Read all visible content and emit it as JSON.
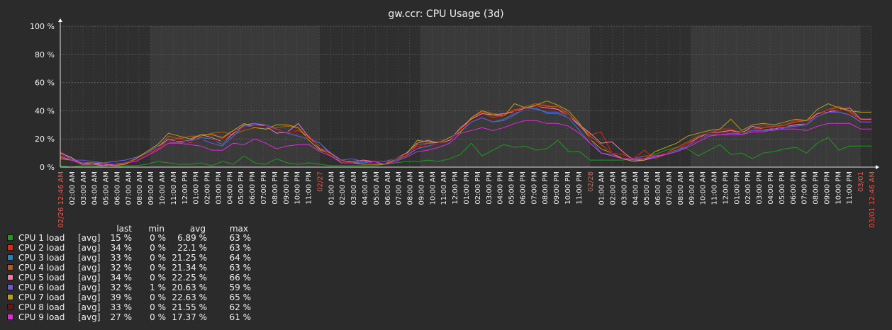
{
  "chart_data": {
    "type": "line",
    "title": "gw.ccr: CPU Usage (3d)",
    "ylim": [
      0,
      100
    ],
    "y_ticks": [
      "0 %",
      "20 %",
      "40 %",
      "60 %",
      "80 %",
      "100 %"
    ],
    "x_tick_labels": [
      "02/26 12:46 AM",
      "02:00 AM",
      "03:00 AM",
      "04:00 AM",
      "05:00 AM",
      "06:00 AM",
      "07:00 AM",
      "08:00 AM",
      "09:00 AM",
      "10:00 AM",
      "11:00 AM",
      "12:00 PM",
      "01:00 PM",
      "02:00 PM",
      "03:00 PM",
      "04:00 PM",
      "05:00 PM",
      "06:00 PM",
      "07:00 PM",
      "08:00 PM",
      "09:00 PM",
      "10:00 PM",
      "11:00 PM",
      "02/27",
      "01:00 AM",
      "02:00 AM",
      "03:00 AM",
      "04:00 AM",
      "05:00 AM",
      "06:00 AM",
      "07:00 AM",
      "08:00 AM",
      "09:00 AM",
      "10:00 AM",
      "11:00 AM",
      "12:00 PM",
      "01:00 PM",
      "02:00 PM",
      "03:00 PM",
      "04:00 PM",
      "05:00 PM",
      "06:00 PM",
      "07:00 PM",
      "08:00 PM",
      "09:00 PM",
      "10:00 PM",
      "11:00 PM",
      "02/28",
      "01:00 AM",
      "02:00 AM",
      "03:00 AM",
      "04:00 AM",
      "05:00 AM",
      "06:00 AM",
      "07:00 AM",
      "08:00 AM",
      "09:00 AM",
      "10:00 AM",
      "11:00 AM",
      "12:00 PM",
      "01:00 PM",
      "02:00 PM",
      "03:00 PM",
      "04:00 PM",
      "05:00 PM",
      "06:00 PM",
      "07:00 PM",
      "08:00 PM",
      "09:00 PM",
      "10:00 PM",
      "11:00 PM",
      "03/01",
      "03/01 12:46 AM"
    ],
    "x_tick_highlight": [
      0,
      23,
      47,
      71,
      72
    ],
    "grid": true,
    "legend_headers": [
      "last",
      "min",
      "avg",
      "max"
    ],
    "series": [
      {
        "name": "CPU 1 load",
        "fn": "[avg]",
        "last": "15 %",
        "min": "0 %",
        "avg": "6.89 %",
        "max": "63 %",
        "color": "#1f9a1f",
        "values": [
          1,
          0,
          1,
          1,
          0,
          0,
          1,
          1,
          2,
          4,
          3,
          2,
          2,
          3,
          1,
          4,
          2,
          8,
          3,
          2,
          6,
          3,
          2,
          3,
          2,
          1,
          1,
          1,
          1,
          1,
          2,
          3,
          4,
          4,
          5,
          4,
          6,
          9,
          17,
          8,
          12,
          16,
          14,
          15,
          12,
          13,
          19,
          11,
          11,
          5,
          5,
          5,
          5,
          6,
          6,
          9,
          12,
          14,
          13,
          8,
          12,
          16,
          9,
          10,
          6,
          10,
          11,
          13,
          14,
          10,
          17,
          21,
          12,
          15,
          15,
          15
        ]
      },
      {
        "name": "CPU 2 load",
        "fn": "[avg]",
        "last": "34 %",
        "min": "0 %",
        "avg": "22.1 %",
        "max": "63 %",
        "color": "#e8280a",
        "values": [
          11,
          6,
          3,
          2,
          3,
          1,
          2,
          5,
          9,
          13,
          18,
          21,
          17,
          22,
          24,
          20,
          26,
          28,
          30,
          29,
          26,
          24,
          26,
          22,
          14,
          8,
          3,
          3,
          3,
          3,
          2,
          5,
          9,
          15,
          15,
          17,
          20,
          26,
          35,
          39,
          35,
          37,
          41,
          41,
          44,
          44,
          41,
          38,
          29,
          23,
          25,
          10,
          9,
          6,
          12,
          6,
          9,
          13,
          17,
          21,
          24,
          27,
          27,
          24,
          27,
          30,
          28,
          30,
          33,
          33,
          37,
          41,
          43,
          39,
          34,
          34
        ]
      },
      {
        "name": "CPU 3 load",
        "fn": "[avg]",
        "last": "33 %",
        "min": "0 %",
        "avg": "21.25 %",
        "max": "64 %",
        "color": "#2a7fbf",
        "values": [
          9,
          6,
          3,
          3,
          3,
          4,
          5,
          7,
          10,
          15,
          18,
          19,
          18,
          21,
          20,
          16,
          24,
          28,
          30,
          30,
          27,
          24,
          22,
          20,
          17,
          9,
          3,
          3,
          4,
          3,
          3,
          5,
          8,
          13,
          15,
          18,
          20,
          26,
          32,
          35,
          32,
          34,
          38,
          41,
          42,
          38,
          38,
          35,
          26,
          17,
          10,
          9,
          7,
          6,
          8,
          7,
          10,
          12,
          16,
          20,
          24,
          24,
          25,
          23,
          27,
          26,
          26,
          28,
          30,
          30,
          37,
          40,
          39,
          37,
          33,
          33
        ]
      },
      {
        "name": "CPU 4 load",
        "fn": "[avg]",
        "last": "32 %",
        "min": "0 %",
        "avg": "21.34 %",
        "max": "63 %",
        "color": "#b85a14",
        "values": [
          7,
          5,
          2,
          2,
          2,
          1,
          3,
          6,
          10,
          14,
          22,
          20,
          22,
          22,
          24,
          25,
          23,
          26,
          28,
          27,
          28,
          29,
          28,
          20,
          14,
          10,
          5,
          3,
          3,
          3,
          3,
          6,
          8,
          16,
          17,
          18,
          20,
          27,
          35,
          40,
          38,
          37,
          40,
          43,
          45,
          43,
          43,
          38,
          30,
          22,
          16,
          10,
          6,
          5,
          8,
          8,
          10,
          14,
          18,
          22,
          24,
          24,
          26,
          25,
          27,
          28,
          29,
          30,
          32,
          33,
          38,
          40,
          43,
          40,
          32,
          32
        ]
      },
      {
        "name": "CPU 5 load",
        "fn": "[avg]",
        "last": "34 %",
        "min": "0 %",
        "avg": "22.25 %",
        "max": "66 %",
        "color": "#f07aa8",
        "values": [
          10,
          7,
          2,
          2,
          1,
          2,
          3,
          5,
          9,
          14,
          20,
          18,
          19,
          23,
          21,
          18,
          24,
          30,
          31,
          29,
          24,
          25,
          31,
          21,
          13,
          10,
          4,
          4,
          5,
          4,
          4,
          6,
          10,
          17,
          19,
          17,
          19,
          28,
          34,
          38,
          37,
          38,
          39,
          42,
          43,
          42,
          41,
          36,
          30,
          24,
          17,
          18,
          11,
          5,
          5,
          7,
          10,
          13,
          16,
          21,
          24,
          25,
          26,
          24,
          29,
          27,
          27,
          29,
          30,
          31,
          38,
          39,
          41,
          42,
          34,
          34
        ]
      },
      {
        "name": "CPU 6 load",
        "fn": "[avg]",
        "last": "32 %",
        "min": "1 %",
        "avg": "20.63 %",
        "max": "59 %",
        "color": "#6a5ad8",
        "values": [
          8,
          5,
          5,
          4,
          3,
          4,
          5,
          7,
          10,
          14,
          18,
          17,
          19,
          20,
          17,
          15,
          22,
          29,
          31,
          30,
          27,
          24,
          22,
          20,
          17,
          10,
          5,
          6,
          4,
          4,
          4,
          6,
          9,
          13,
          17,
          17,
          20,
          25,
          32,
          35,
          32,
          33,
          37,
          42,
          41,
          39,
          39,
          36,
          29,
          20,
          10,
          9,
          6,
          5,
          6,
          7,
          9,
          11,
          15,
          20,
          23,
          23,
          24,
          24,
          26,
          26,
          28,
          28,
          29,
          30,
          36,
          39,
          39,
          37,
          32,
          32
        ]
      },
      {
        "name": "CPU 7 load",
        "fn": "[avg]",
        "last": "39 %",
        "min": "0 %",
        "avg": "22.63 %",
        "max": "65 %",
        "color": "#b8a018",
        "values": [
          6,
          5,
          3,
          3,
          2,
          1,
          2,
          6,
          11,
          16,
          24,
          22,
          20,
          23,
          23,
          21,
          26,
          31,
          28,
          27,
          30,
          30,
          28,
          19,
          12,
          10,
          3,
          3,
          2,
          2,
          2,
          6,
          9,
          19,
          18,
          17,
          21,
          25,
          35,
          40,
          37,
          36,
          45,
          42,
          44,
          47,
          44,
          40,
          31,
          20,
          13,
          10,
          6,
          4,
          5,
          11,
          14,
          17,
          22,
          24,
          26,
          27,
          34,
          26,
          30,
          31,
          30,
          32,
          34,
          33,
          41,
          45,
          42,
          40,
          39,
          39
        ]
      },
      {
        "name": "CPU 8 load",
        "fn": "[avg]",
        "last": "33 %",
        "min": "0 %",
        "avg": "21.55 %",
        "max": "62 %",
        "color": "#6a1414",
        "values": [
          9,
          5,
          3,
          2,
          2,
          2,
          3,
          5,
          9,
          14,
          18,
          19,
          18,
          20,
          19,
          18,
          25,
          28,
          29,
          29,
          26,
          25,
          25,
          20,
          14,
          9,
          4,
          3,
          3,
          3,
          3,
          6,
          9,
          14,
          16,
          17,
          20,
          26,
          33,
          37,
          34,
          36,
          39,
          41,
          43,
          41,
          40,
          36,
          28,
          20,
          15,
          10,
          7,
          6,
          7,
          8,
          10,
          13,
          16,
          20,
          24,
          24,
          25,
          24,
          27,
          27,
          28,
          29,
          31,
          31,
          37,
          40,
          41,
          38,
          33,
          33
        ]
      },
      {
        "name": "CPU 9 load",
        "fn": "[avg]",
        "last": "27 %",
        "min": "0 %",
        "avg": "17.37 %",
        "max": "61 %",
        "color": "#e02ae0",
        "values": [
          8,
          5,
          3,
          2,
          2,
          2,
          3,
          4,
          8,
          12,
          17,
          17,
          16,
          15,
          12,
          12,
          17,
          16,
          20,
          17,
          13,
          15,
          16,
          16,
          11,
          8,
          3,
          3,
          3,
          4,
          2,
          4,
          7,
          11,
          12,
          14,
          17,
          24,
          26,
          28,
          26,
          28,
          31,
          33,
          33,
          31,
          31,
          29,
          24,
          17,
          10,
          8,
          6,
          6,
          6,
          8,
          9,
          11,
          14,
          18,
          22,
          23,
          23,
          23,
          25,
          25,
          27,
          27,
          27,
          26,
          29,
          31,
          31,
          31,
          27,
          27
        ]
      }
    ]
  }
}
